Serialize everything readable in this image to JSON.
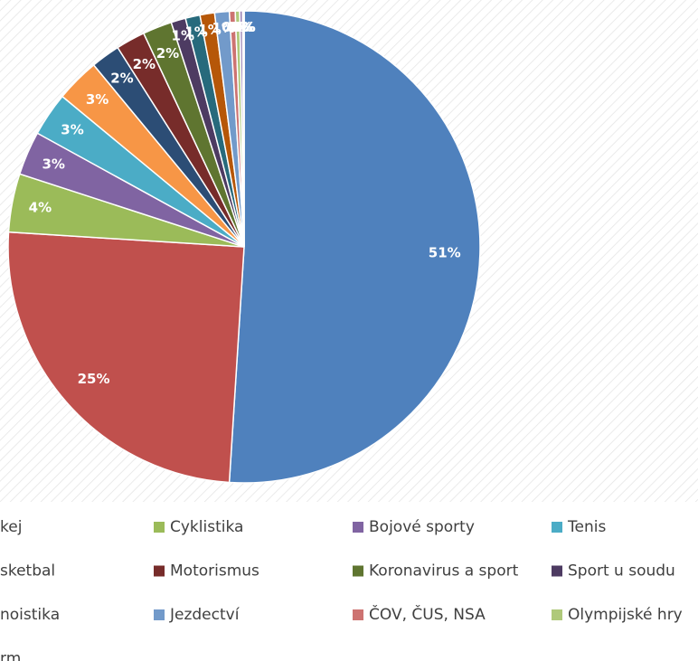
{
  "chart_data": {
    "type": "pie",
    "categories": [
      null,
      "kej",
      "Cyklistika",
      "Bojové sporty",
      "Tenis",
      null,
      "sketbal",
      "Motorismus",
      "Koronavirus a sport",
      "Sport u soudu",
      null,
      "noistika",
      "Jezdectví",
      "ČOV, ČUS, NSA",
      "Olympijské hry",
      null,
      "rm",
      null
    ],
    "values": [
      51,
      25,
      4,
      3,
      3,
      3,
      2,
      2,
      2,
      1,
      1,
      1,
      1,
      0.4,
      0.3,
      0.2,
      0.1,
      0
    ],
    "value_labels": [
      "51%",
      "25%",
      "4%",
      "3%",
      "3%",
      "3%",
      "2%",
      "2%",
      "2%",
      "1%",
      "1%",
      "1%",
      "1%",
      "0%",
      "0%",
      "0%",
      "0%",
      "0%"
    ],
    "colors": [
      "#4f81bd",
      "#c0504d",
      "#9bbb59",
      "#8064a2",
      "#4bacc6",
      "#f79646",
      "#2c4d75",
      "#772c2a",
      "#5f7530",
      "#4d3b62",
      "#276a7c",
      "#b65708",
      "#729aca",
      "#cd7371",
      "#afc97a",
      "#9983b5",
      "#6fbdd1",
      "#f9ab6b"
    ]
  }
}
